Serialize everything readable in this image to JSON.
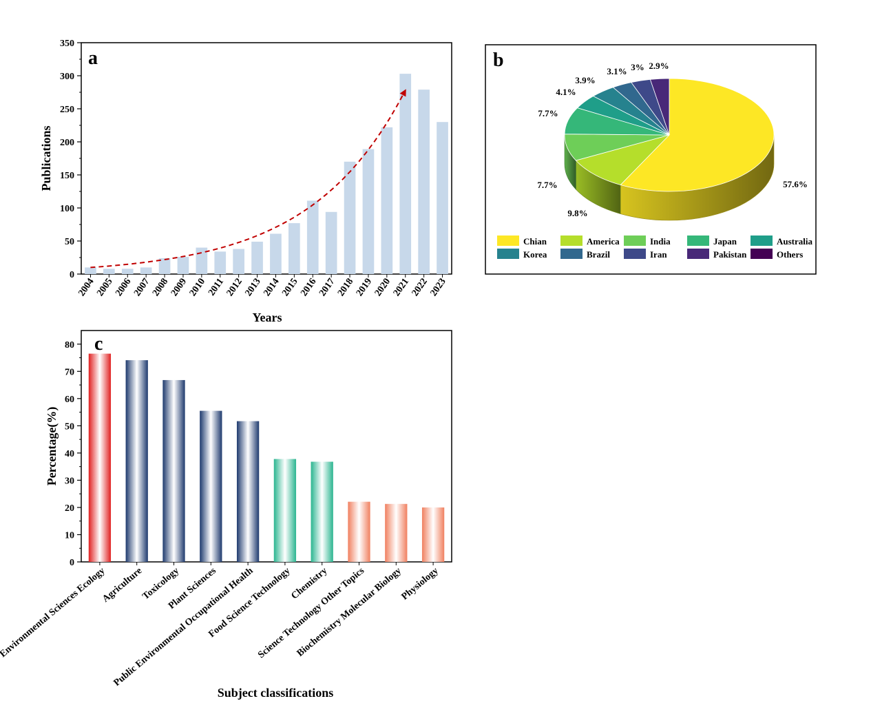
{
  "chart_data": [
    {
      "panel": "a",
      "type": "bar",
      "xlabel": "Years",
      "ylabel": "Publications",
      "ylim": [
        0,
        350
      ],
      "yticks": [
        0,
        50,
        100,
        150,
        200,
        250,
        300,
        350
      ],
      "categories": [
        "2004",
        "2005",
        "2006",
        "2007",
        "2008",
        "2009",
        "2010",
        "2011",
        "2012",
        "2013",
        "2014",
        "2015",
        "2016",
        "2017",
        "2018",
        "2019",
        "2020",
        "2021",
        "2022",
        "2023"
      ],
      "values": [
        10,
        8,
        8,
        10,
        24,
        26,
        40,
        34,
        38,
        49,
        61,
        77,
        111,
        94,
        170,
        189,
        222,
        303,
        279,
        230
      ],
      "trend": {
        "style": "dashed-arrow",
        "color": "#c00000",
        "start": 10,
        "end": 278
      },
      "bar_color": "#c7d8ea"
    },
    {
      "panel": "b",
      "type": "pie",
      "style": "3d",
      "labels": [
        "Chian",
        "America",
        "India",
        "Japan",
        "Australia",
        "Korea",
        "Brazil",
        "Iran",
        "Pakistan",
        "Others"
      ],
      "values": [
        57.6,
        9.8,
        7.7,
        7.7,
        4.1,
        3.9,
        3.1,
        3,
        2.9,
        0
      ],
      "value_labels": [
        "57.6%",
        "9.8%",
        "7.7%",
        "7.7%",
        "4.1%",
        "3.9%",
        "3.1%",
        "3%",
        "2.9%",
        ""
      ],
      "colors": [
        "#fde725",
        "#b5de2b",
        "#6ece58",
        "#35b779",
        "#1f9e89",
        "#26828e",
        "#31688e",
        "#3e4989",
        "#482878",
        "#440154"
      ]
    },
    {
      "panel": "c",
      "type": "bar",
      "xlabel": "Subject classifications",
      "ylabel": "Percentage(%)",
      "ylim": [
        0,
        85
      ],
      "yticks": [
        0,
        10,
        20,
        30,
        40,
        50,
        60,
        70,
        80
      ],
      "categories": [
        "Environmental Sciences Ecology",
        "Agriculture",
        "Toxicology",
        "Plant Sciences",
        "Public Environmental Occupational Health",
        "Food Science Technology",
        "Chemistry",
        "Science Technology Other Topics",
        "Biochemistry Molecular Biology",
        "Physiology"
      ],
      "values": [
        76.5,
        74.1,
        66.8,
        55.5,
        51.7,
        37.8,
        36.8,
        22.1,
        21.3,
        20
      ],
      "colors": [
        "#e02020",
        "#1e3a6e",
        "#1e3a6e",
        "#1e3a6e",
        "#1e3a6e",
        "#2bb590",
        "#2bb590",
        "#f08060",
        "#f08060",
        "#f08060"
      ]
    }
  ]
}
